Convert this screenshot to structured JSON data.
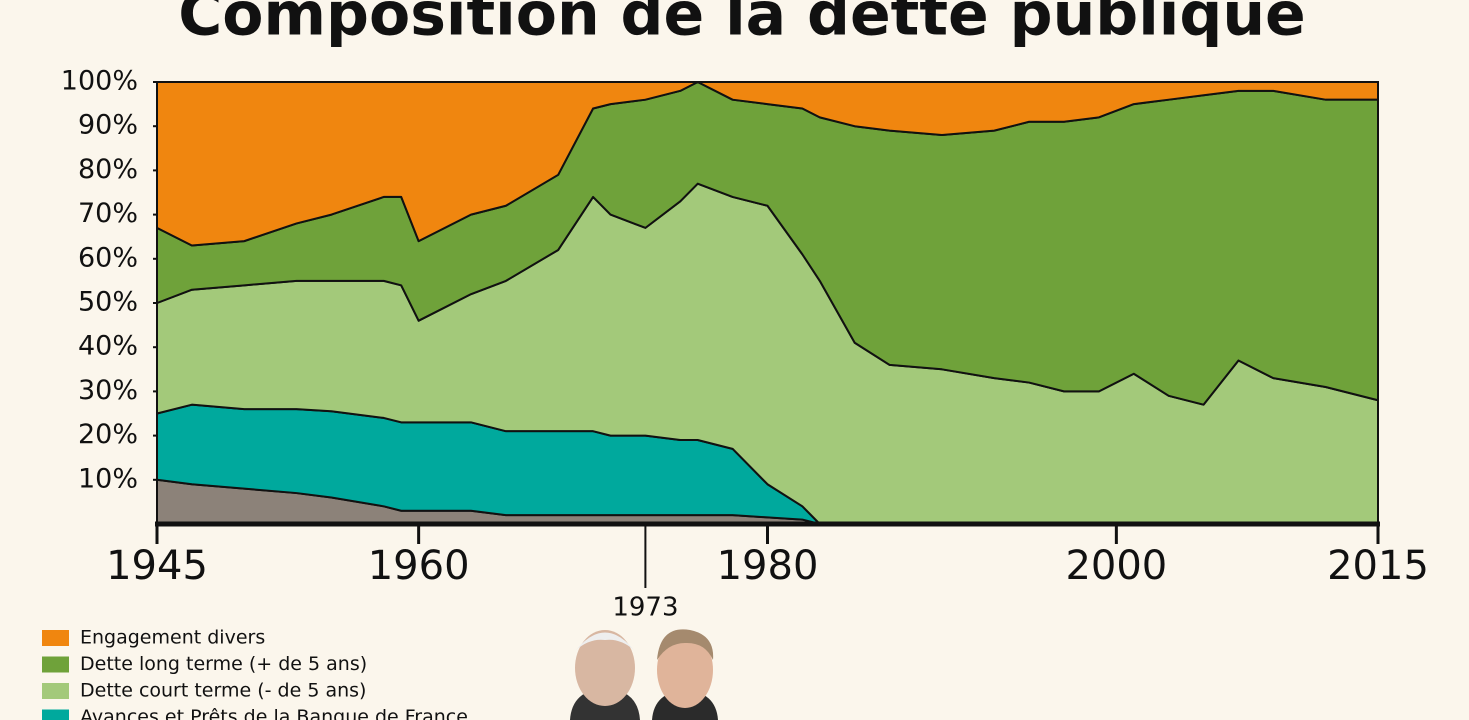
{
  "chart_data": {
    "type": "stacked-area",
    "title": "Composition de la dette publique",
    "x": [
      1945,
      1947,
      1950,
      1953,
      1955,
      1958,
      1959,
      1960,
      1963,
      1965,
      1968,
      1970,
      1971,
      1973,
      1975,
      1976,
      1978,
      1980,
      1982,
      1983,
      1985,
      1987,
      1990,
      1993,
      1995,
      1997,
      1999,
      2001,
      2003,
      2005,
      2007,
      2009,
      2012,
      2015
    ],
    "series": [
      {
        "color": "#8c8279",
        "values": [
          10,
          9,
          8,
          7,
          6,
          4,
          3,
          3,
          3,
          2,
          2,
          2,
          2,
          2,
          2,
          2,
          2,
          1.5,
          1,
          0,
          0,
          0,
          0,
          0,
          0,
          0,
          0,
          0,
          0,
          0,
          0,
          0,
          0,
          0
        ]
      },
      {
        "name": "Avances et Prêts de la Banque de France",
        "color": "#00a99d",
        "values": [
          15,
          18,
          18,
          19,
          19.5,
          20,
          20,
          20,
          20,
          19,
          19,
          19,
          18,
          18,
          17,
          17,
          15,
          7.5,
          3,
          0,
          0,
          0,
          0,
          0,
          0,
          0,
          0,
          0,
          0,
          0,
          0,
          0,
          0,
          0
        ]
      },
      {
        "name": "Dette court terme (- de 5 ans)",
        "color": "#a3c97a",
        "values": [
          25,
          26,
          28,
          29,
          29.5,
          31,
          31,
          23,
          29,
          34,
          41,
          53,
          50,
          47,
          54,
          58,
          57,
          63,
          57,
          55,
          41,
          36,
          35,
          33,
          32,
          30,
          30,
          34,
          29,
          27,
          37,
          33,
          31,
          28
        ]
      },
      {
        "name": "Dette long terme (+ de 5 ans)",
        "color": "#6fa23a",
        "values": [
          17,
          10,
          10,
          13,
          15,
          19,
          20,
          18,
          18,
          17,
          17,
          20,
          25,
          29,
          25,
          23,
          22,
          23,
          33,
          37,
          49,
          53,
          53,
          56,
          59,
          61,
          62,
          61,
          67,
          70,
          61,
          65,
          65,
          68
        ]
      },
      {
        "name": "Engagement divers",
        "color": "#f0860f",
        "values": [
          33,
          37,
          36,
          32,
          30,
          26,
          26,
          36,
          30,
          28,
          21,
          6,
          5,
          4,
          2,
          0,
          4,
          5,
          6,
          8,
          10,
          11,
          12,
          11,
          9,
          9,
          8,
          5,
          4,
          3,
          2,
          2,
          4,
          4
        ]
      }
    ],
    "xlim": [
      1945,
      2015
    ],
    "xticks": [
      1945,
      1960,
      1980,
      2000,
      2015
    ],
    "ylim": [
      0,
      100
    ],
    "yticks": [
      {
        "value": 10,
        "label": "10%"
      },
      {
        "value": 20,
        "label": "20%"
      },
      {
        "value": 30,
        "label": "30%"
      },
      {
        "value": 40,
        "label": "40%"
      },
      {
        "value": 50,
        "label": "50%"
      },
      {
        "value": 60,
        "label": "60%"
      },
      {
        "value": 70,
        "label": "70%"
      },
      {
        "value": 80,
        "label": "80%"
      },
      {
        "value": 90,
        "label": "90%"
      },
      {
        "value": 100,
        "label": "100%"
      }
    ],
    "annotation": {
      "value": 1973,
      "label": "1973"
    }
  }
}
